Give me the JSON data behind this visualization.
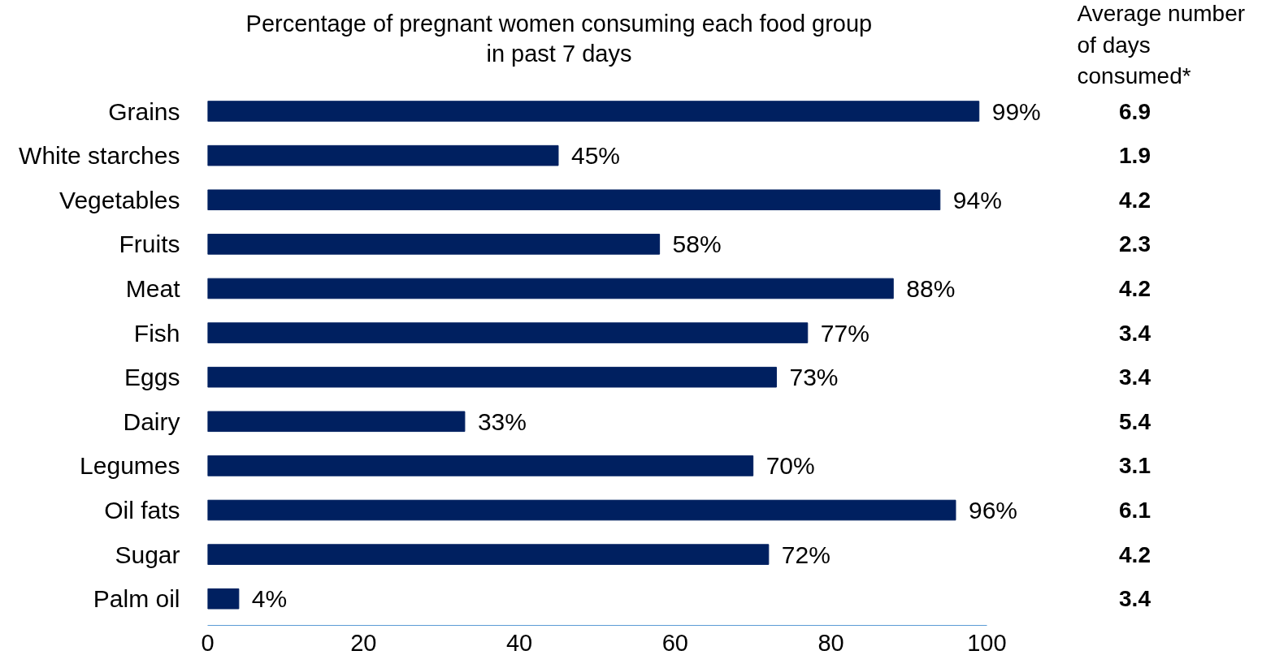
{
  "chart_data": {
    "type": "bar",
    "orientation": "horizontal",
    "title": "Percentage of pregnant women consuming each food group in past 7 days",
    "categories": [
      "Grains",
      "White starches",
      "Vegetables",
      "Fruits",
      "Meat",
      "Fish",
      "Eggs",
      "Dairy",
      "Legumes",
      "Oil fats",
      "Sugar",
      "Palm oil"
    ],
    "values": [
      99,
      45,
      94,
      58,
      88,
      77,
      73,
      33,
      70,
      96,
      72,
      4
    ],
    "value_labels": [
      "99%",
      "45%",
      "94%",
      "58%",
      "88%",
      "77%",
      "73%",
      "33%",
      "70%",
      "96%",
      "72%",
      "4%"
    ],
    "color": "#002060",
    "xlim": [
      0,
      100
    ],
    "xticks": [
      0,
      20,
      40,
      60,
      80,
      100
    ],
    "grid": false,
    "annotations": [
      "Average number of days consumed*",
      "6.9",
      "1.9",
      "4.2",
      "2.3",
      "4.2",
      "3.4",
      "3.4",
      "5.4",
      "3.1",
      "6.1",
      "4.2",
      "3.4"
    ]
  }
}
